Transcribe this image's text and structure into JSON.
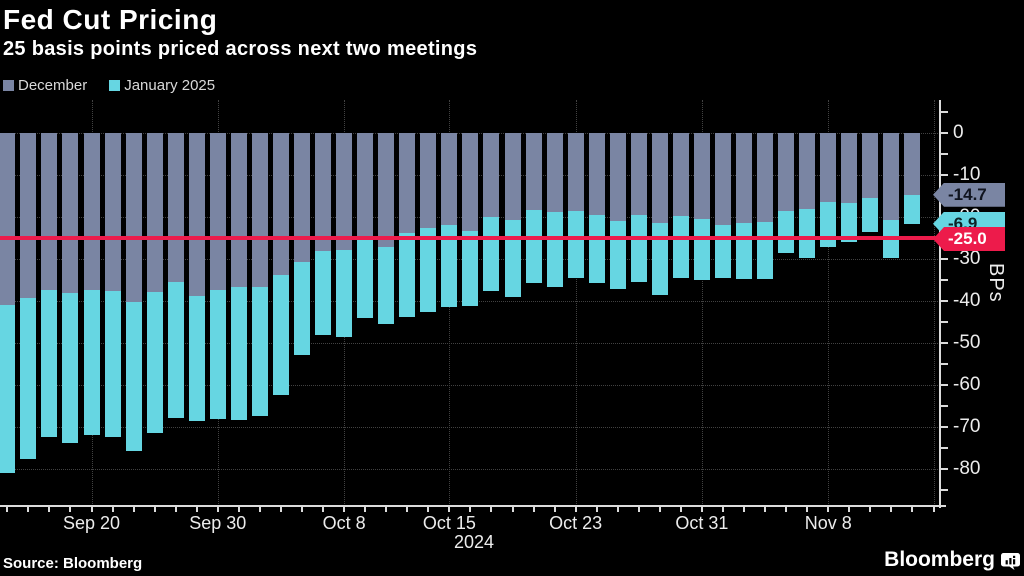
{
  "header": {
    "title": "Fed Cut Pricing",
    "subtitle": "25 basis points priced across next two meetings"
  },
  "legend": {
    "december": {
      "label": "December",
      "color": "#7a85a3"
    },
    "january": {
      "label": "January 2025",
      "color": "#66d6e2"
    }
  },
  "footer": {
    "source": "Source: Bloomberg",
    "brand": "Bloomberg"
  },
  "chart_data": {
    "type": "bar",
    "stacked": true,
    "title": "Fed Cut Pricing",
    "subtitle": "25 basis points priced across next two meetings",
    "ylabel": "BPs",
    "unit": "basis points",
    "ylim": [
      -88,
      8
    ],
    "y_ticks": [
      0,
      -10,
      -20,
      -30,
      -40,
      -50,
      -60,
      -70,
      -80
    ],
    "grid": "dotted",
    "legend_position": "top-left",
    "x_year_label": "2024",
    "x_ticks": [
      {
        "label": "Sep 20",
        "index": 4
      },
      {
        "label": "Sep 30",
        "index": 10
      },
      {
        "label": "Oct 8",
        "index": 16
      },
      {
        "label": "Oct 15",
        "index": 21
      },
      {
        "label": "Oct 23",
        "index": 27
      },
      {
        "label": "Oct 31",
        "index": 33
      },
      {
        "label": "Nov 8",
        "index": 39
      }
    ],
    "extra_vgrid_indices": [
      44
    ],
    "reference_line": {
      "value": -25.0,
      "label": "-25.0",
      "color": "#ed1b4b",
      "text_color": "#ffffff"
    },
    "end_labels": [
      {
        "series": "December",
        "text": "-14.7",
        "value": -14.7,
        "bg": "#7a85a3",
        "fg": "#10141f"
      },
      {
        "series": "January 2025",
        "text": "-6.9",
        "value": -21.6,
        "bg": "#66d6e2",
        "fg": "#0d2326"
      }
    ],
    "series": [
      {
        "name": "December",
        "color": "#7a85a3",
        "latest": -14.7
      },
      {
        "name": "January 2025",
        "color": "#66d6e2",
        "latest": -6.9
      }
    ],
    "bars": [
      {
        "date": "Sep 16",
        "december": -41.0,
        "january": -40.0
      },
      {
        "date": "Sep 17",
        "december": -39.3,
        "january": -38.3
      },
      {
        "date": "Sep 18",
        "december": -37.4,
        "january": -35.0
      },
      {
        "date": "Sep 19",
        "december": -38.0,
        "january": -35.9
      },
      {
        "date": "Sep 20",
        "december": -37.4,
        "january": -34.5
      },
      {
        "date": "Sep 23",
        "december": -37.5,
        "january": -34.8
      },
      {
        "date": "Sep 24",
        "december": -40.3,
        "january": -35.4
      },
      {
        "date": "Sep 25",
        "december": -37.9,
        "january": -33.6
      },
      {
        "date": "Sep 26",
        "december": -35.4,
        "january": -32.4
      },
      {
        "date": "Sep 27",
        "december": -38.8,
        "january": -29.8
      },
      {
        "date": "Sep 30",
        "december": -37.4,
        "january": -30.8
      },
      {
        "date": "Oct 1",
        "december": -36.6,
        "january": -31.7
      },
      {
        "date": "Oct 2",
        "december": -36.6,
        "january": -30.9
      },
      {
        "date": "Oct 3",
        "december": -33.8,
        "january": -28.6
      },
      {
        "date": "Oct 4",
        "december": -30.8,
        "january": -22.1
      },
      {
        "date": "Oct 7",
        "december": -28.2,
        "january": -19.9
      },
      {
        "date": "Oct 8",
        "december": -27.9,
        "january": -20.7
      },
      {
        "date": "Oct 9",
        "december": -24.5,
        "january": -19.6
      },
      {
        "date": "Oct 10",
        "december": -27.1,
        "january": -18.4
      },
      {
        "date": "Oct 11",
        "december": -23.8,
        "january": -19.9
      },
      {
        "date": "Oct 14",
        "december": -22.6,
        "january": -20.0
      },
      {
        "date": "Oct 15",
        "december": -22.0,
        "january": -19.5
      },
      {
        "date": "Oct 16",
        "december": -23.3,
        "january": -17.9
      },
      {
        "date": "Oct 17",
        "december": -20.0,
        "january": -17.5
      },
      {
        "date": "Oct 18",
        "december": -20.8,
        "january": -18.2
      },
      {
        "date": "Oct 21",
        "december": -18.3,
        "january": -17.4
      },
      {
        "date": "Oct 22",
        "december": -18.8,
        "january": -17.8
      },
      {
        "date": "Oct 23",
        "december": -18.6,
        "january": -15.9
      },
      {
        "date": "Oct 24",
        "december": -19.6,
        "january": -16.0
      },
      {
        "date": "Oct 25",
        "december": -21.0,
        "january": -16.2
      },
      {
        "date": "Oct 28",
        "december": -19.5,
        "january": -16.0
      },
      {
        "date": "Oct 29",
        "december": -21.5,
        "january": -17.1
      },
      {
        "date": "Oct 30",
        "december": -19.7,
        "january": -14.9
      },
      {
        "date": "Oct 31",
        "december": -20.5,
        "january": -14.5
      },
      {
        "date": "Nov 1",
        "december": -21.8,
        "january": -12.8
      },
      {
        "date": "Nov 4",
        "december": -21.5,
        "january": -13.3
      },
      {
        "date": "Nov 5",
        "december": -21.3,
        "january": -13.5
      },
      {
        "date": "Nov 6",
        "december": -18.5,
        "january": -10.0
      },
      {
        "date": "Nov 7",
        "december": -18.0,
        "january": -11.8
      },
      {
        "date": "Nov 8",
        "december": -16.4,
        "january": -10.7
      },
      {
        "date": "Nov 11",
        "december": -16.7,
        "january": -9.3
      },
      {
        "date": "Nov 12",
        "december": -15.5,
        "january": -8.0
      },
      {
        "date": "Nov 13",
        "december": -20.7,
        "january": -9.1
      },
      {
        "date": "Nov 14",
        "december": -14.7,
        "january": -6.9
      }
    ]
  }
}
